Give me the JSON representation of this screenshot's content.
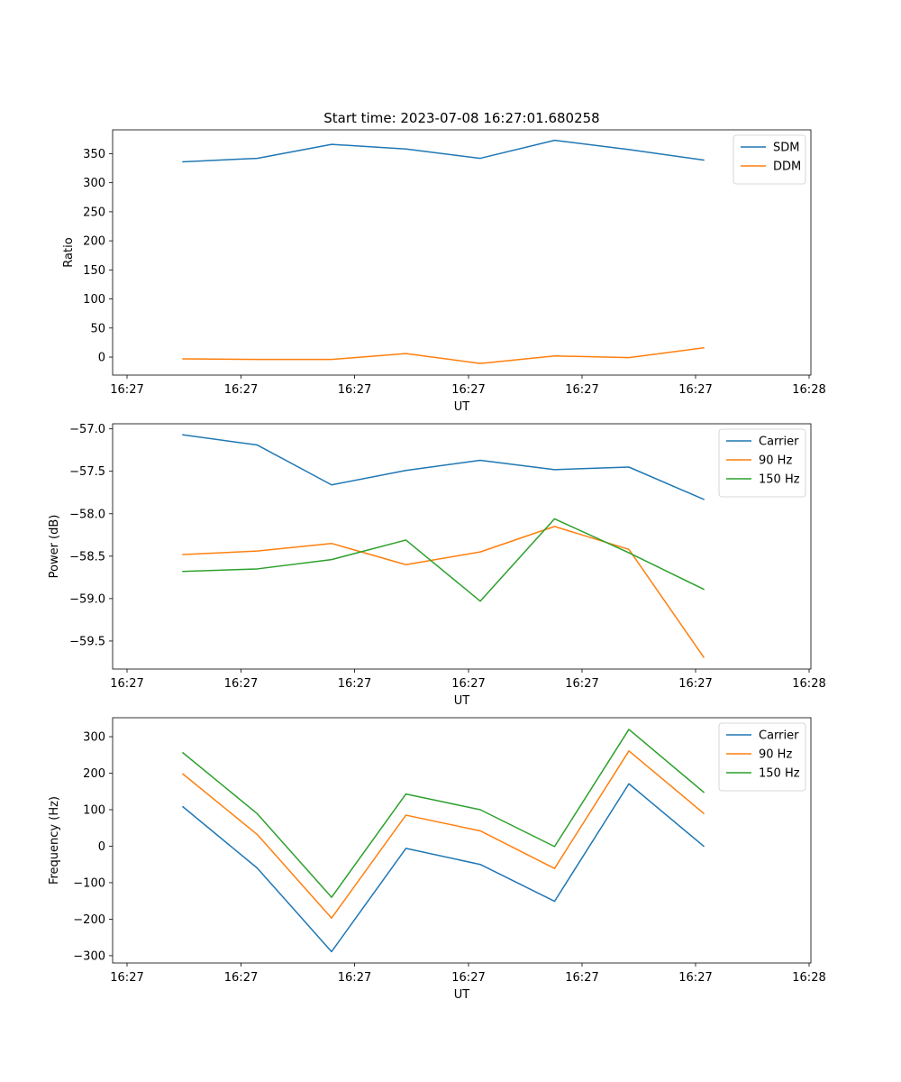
{
  "figure": {
    "title": "Start time: 2023-07-08 16:27:01.680258"
  },
  "colors": {
    "blue": "#1f77b4",
    "orange": "#ff7f0e",
    "green": "#2ca02c"
  },
  "chart_data": [
    {
      "id": "ratio",
      "type": "line",
      "title": "Start time: 2023-07-08 16:27:01.680258",
      "xlabel": "UT",
      "ylabel": "Ratio",
      "xticks": [
        "16:27",
        "16:27",
        "16:27",
        "16:27",
        "16:27",
        "16:27",
        "16:28"
      ],
      "yticks": [
        0,
        50,
        100,
        150,
        200,
        250,
        300,
        350
      ],
      "ylim": [
        -31,
        391
      ],
      "grid": false,
      "legend": "top-right",
      "series": [
        {
          "name": "SDM",
          "color": "#1f77b4",
          "values": [
            336,
            342,
            366,
            358,
            342,
            373,
            357,
            339
          ]
        },
        {
          "name": "DDM",
          "color": "#ff7f0e",
          "values": [
            -3,
            -4,
            -4,
            6,
            -11,
            2,
            -1,
            16
          ]
        }
      ]
    },
    {
      "id": "power",
      "type": "line",
      "xlabel": "UT",
      "ylabel": "Power (dB)",
      "xticks": [
        "16:27",
        "16:27",
        "16:27",
        "16:27",
        "16:27",
        "16:27",
        "16:28"
      ],
      "yticks": [
        -59.5,
        -59.0,
        -58.5,
        -58.0,
        -57.5,
        -57.0
      ],
      "ytick_labels": [
        "−59.5",
        "−59.0",
        "−58.5",
        "−58.0",
        "−57.5",
        "−57.0"
      ],
      "ylim": [
        -59.83,
        -56.94
      ],
      "grid": false,
      "legend": "top-right",
      "series": [
        {
          "name": "Carrier",
          "color": "#1f77b4",
          "values": [
            -57.07,
            -57.19,
            -57.66,
            -57.49,
            -57.37,
            -57.48,
            -57.45,
            -57.83
          ]
        },
        {
          "name": "90 Hz",
          "color": "#ff7f0e",
          "values": [
            -58.48,
            -58.44,
            -58.35,
            -58.6,
            -58.45,
            -58.15,
            -58.42,
            -59.69
          ]
        },
        {
          "name": "150 Hz",
          "color": "#2ca02c",
          "values": [
            -58.68,
            -58.65,
            -58.54,
            -58.31,
            -59.03,
            -58.06,
            -58.46,
            -58.89
          ]
        }
      ]
    },
    {
      "id": "frequency",
      "type": "line",
      "xlabel": "UT",
      "ylabel": "Frequency (Hz)",
      "xticks": [
        "16:27",
        "16:27",
        "16:27",
        "16:27",
        "16:27",
        "16:27",
        "16:28"
      ],
      "yticks": [
        -300,
        -200,
        -100,
        0,
        100,
        200,
        300
      ],
      "ytick_labels": [
        "−300",
        "−200",
        "−100",
        "0",
        "100",
        "200",
        "300"
      ],
      "ylim": [
        -320,
        352
      ],
      "grid": false,
      "legend": "top-right",
      "series": [
        {
          "name": "Carrier",
          "color": "#1f77b4",
          "values": [
            108,
            -60,
            -289,
            -6,
            -50,
            -151,
            171,
            0
          ]
        },
        {
          "name": "90 Hz",
          "color": "#ff7f0e",
          "values": [
            198,
            32,
            -197,
            85,
            42,
            -61,
            261,
            90
          ]
        },
        {
          "name": "150 Hz",
          "color": "#2ca02c",
          "values": [
            256,
            89,
            -140,
            143,
            100,
            -1,
            320,
            148
          ]
        }
      ]
    }
  ]
}
